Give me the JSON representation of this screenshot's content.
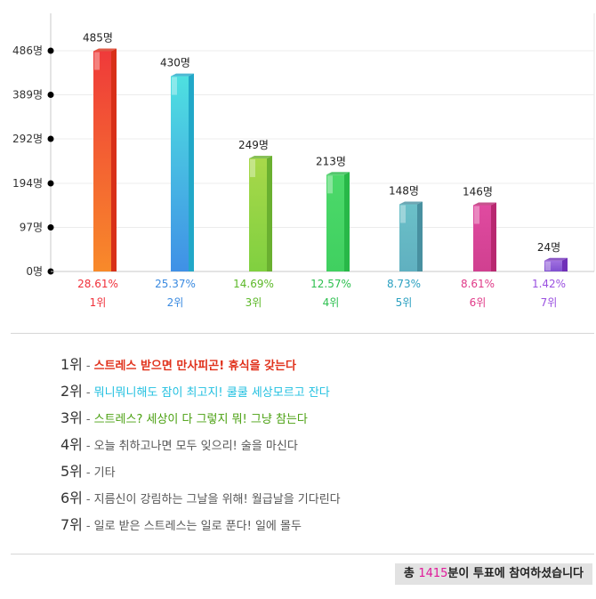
{
  "chart_data": {
    "type": "bar",
    "categories": [
      "1위",
      "2위",
      "3위",
      "4위",
      "5위",
      "6위",
      "7위"
    ],
    "values": [
      485,
      430,
      249,
      213,
      148,
      146,
      24
    ],
    "value_labels": [
      "485명",
      "430명",
      "249명",
      "213명",
      "148명",
      "146명",
      "24명"
    ],
    "percent_labels": [
      "28.61%",
      "25.37%",
      "14.69%",
      "12.57%",
      "8.73%",
      "8.61%",
      "1.42%"
    ],
    "colors_top": [
      "#ef3a3a",
      "#4ee0e0",
      "#a8d84a",
      "#4cd96a",
      "#6bc0c8",
      "#e04aa0",
      "#a070e0"
    ],
    "colors_bottom": [
      "#f88a2a",
      "#4090e6",
      "#80d040",
      "#40d060",
      "#60b0c0",
      "#d04090",
      "#8050d0"
    ],
    "colors_side": [
      "#d83018",
      "#22a8c8",
      "#6ab030",
      "#28b848",
      "#4890a0",
      "#b82870",
      "#7030b8"
    ],
    "label_colors": [
      "#f0303a",
      "#3a8ae0",
      "#5cb828",
      "#2ec050",
      "#2aa0c0",
      "#e03a88",
      "#9a50e0"
    ],
    "y_ticks": [
      0,
      97,
      194,
      292,
      389,
      486
    ],
    "y_tick_labels": [
      "0명",
      "97명",
      "194명",
      "292명",
      "389명",
      "486명"
    ],
    "ylim": [
      0,
      486
    ],
    "grid": true
  },
  "legend": [
    {
      "rank": "1위",
      "text": "스트레스 받으면 만사피곤! 휴식을 갖는다",
      "color": "#e0301a",
      "bold": true
    },
    {
      "rank": "2위",
      "text": "뭐니뭐니해도 잠이 최고지! 쿨쿨 세상모르고 잔다",
      "color": "#22c0e0",
      "bold": false
    },
    {
      "rank": "3위",
      "text": "스트레스? 세상이 다 그렇지 뭐! 그냥 참는다",
      "color": "#4aa010",
      "bold": false
    },
    {
      "rank": "4위",
      "text": "오늘 취하고나면 모두 잊으리! 술을 마신다",
      "color": "#555555",
      "bold": false
    },
    {
      "rank": "5위",
      "text": "기타",
      "color": "#555555",
      "bold": false
    },
    {
      "rank": "6위",
      "text": "지름신이 강림하는 그날을 위해! 월급날을 기다린다",
      "color": "#555555",
      "bold": false
    },
    {
      "rank": "7위",
      "text": "일로 받은 스트레스는 일로 푼다! 일에 몰두",
      "color": "#555555",
      "bold": false
    }
  ],
  "total": {
    "prefix": "총 ",
    "count": "1415",
    "suffix": "분이 투표에 참여하셨습니다"
  }
}
